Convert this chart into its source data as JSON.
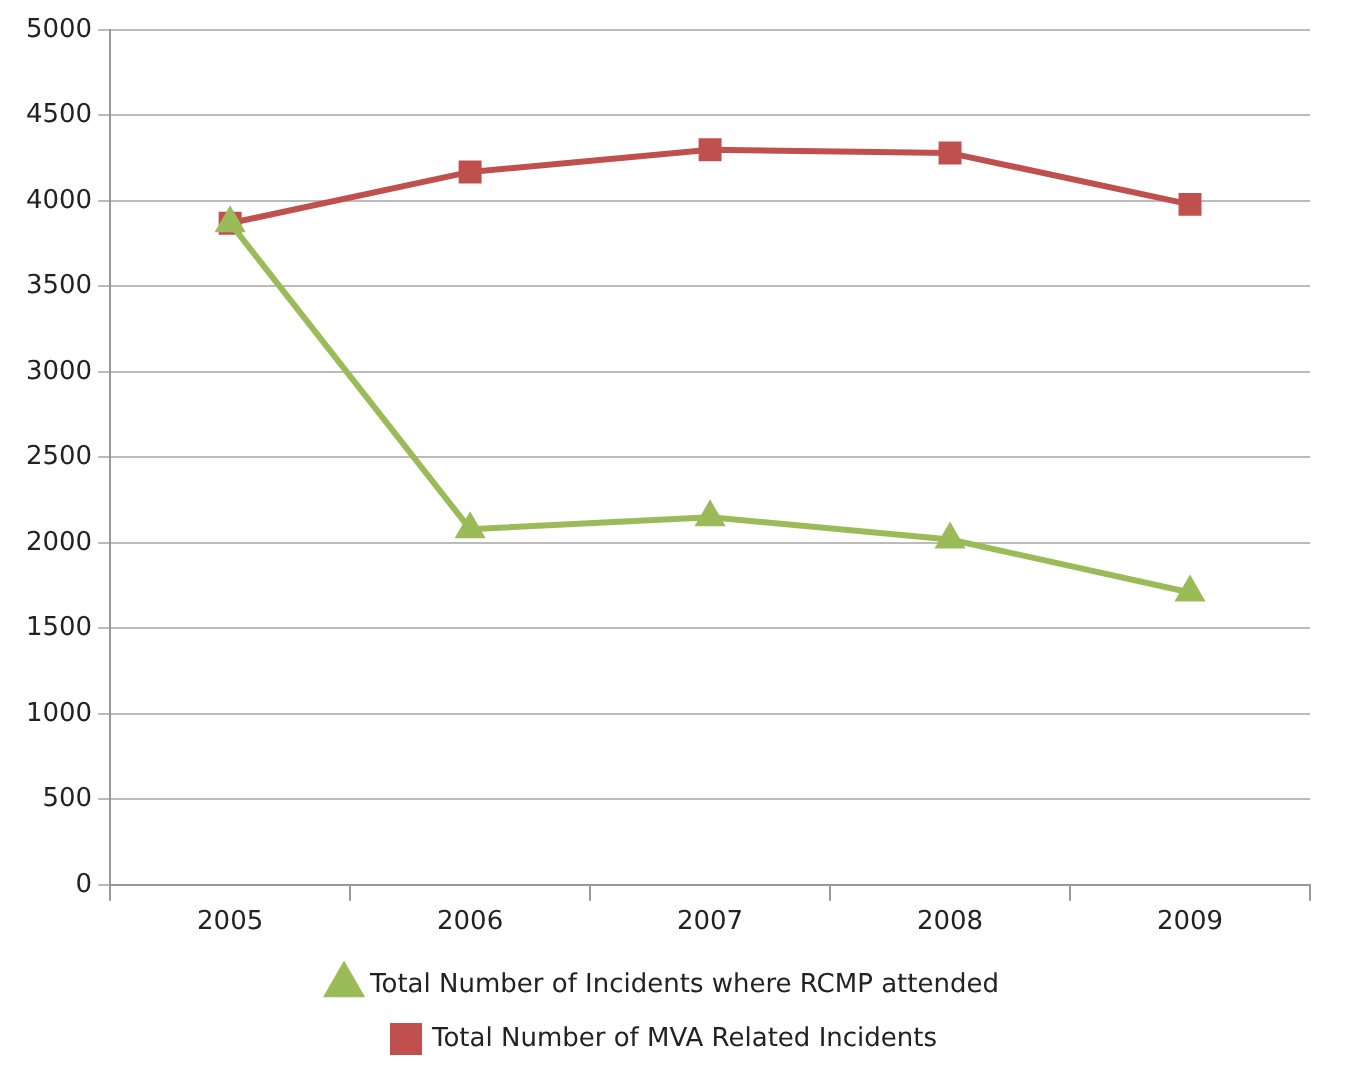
{
  "chart_data": {
    "type": "line",
    "categories": [
      "2005",
      "2006",
      "2007",
      "2008",
      "2009"
    ],
    "series": [
      {
        "name": "Total Number of MVA Related Incidents",
        "color": "#c0504d",
        "marker": "square",
        "values": [
          3870,
          4170,
          4300,
          4280,
          3980
        ]
      },
      {
        "name": "Total Number of Incidents where RCMP attended",
        "color": "#9bbb59",
        "marker": "triangle",
        "values": [
          3870,
          2080,
          2150,
          2020,
          1710
        ]
      }
    ],
    "ylim": [
      0,
      5000
    ],
    "yticks": [
      0,
      500,
      1000,
      1500,
      2000,
      2500,
      3000,
      3500,
      4000,
      4500,
      5000
    ],
    "grid": "y",
    "legend": "bottom"
  }
}
